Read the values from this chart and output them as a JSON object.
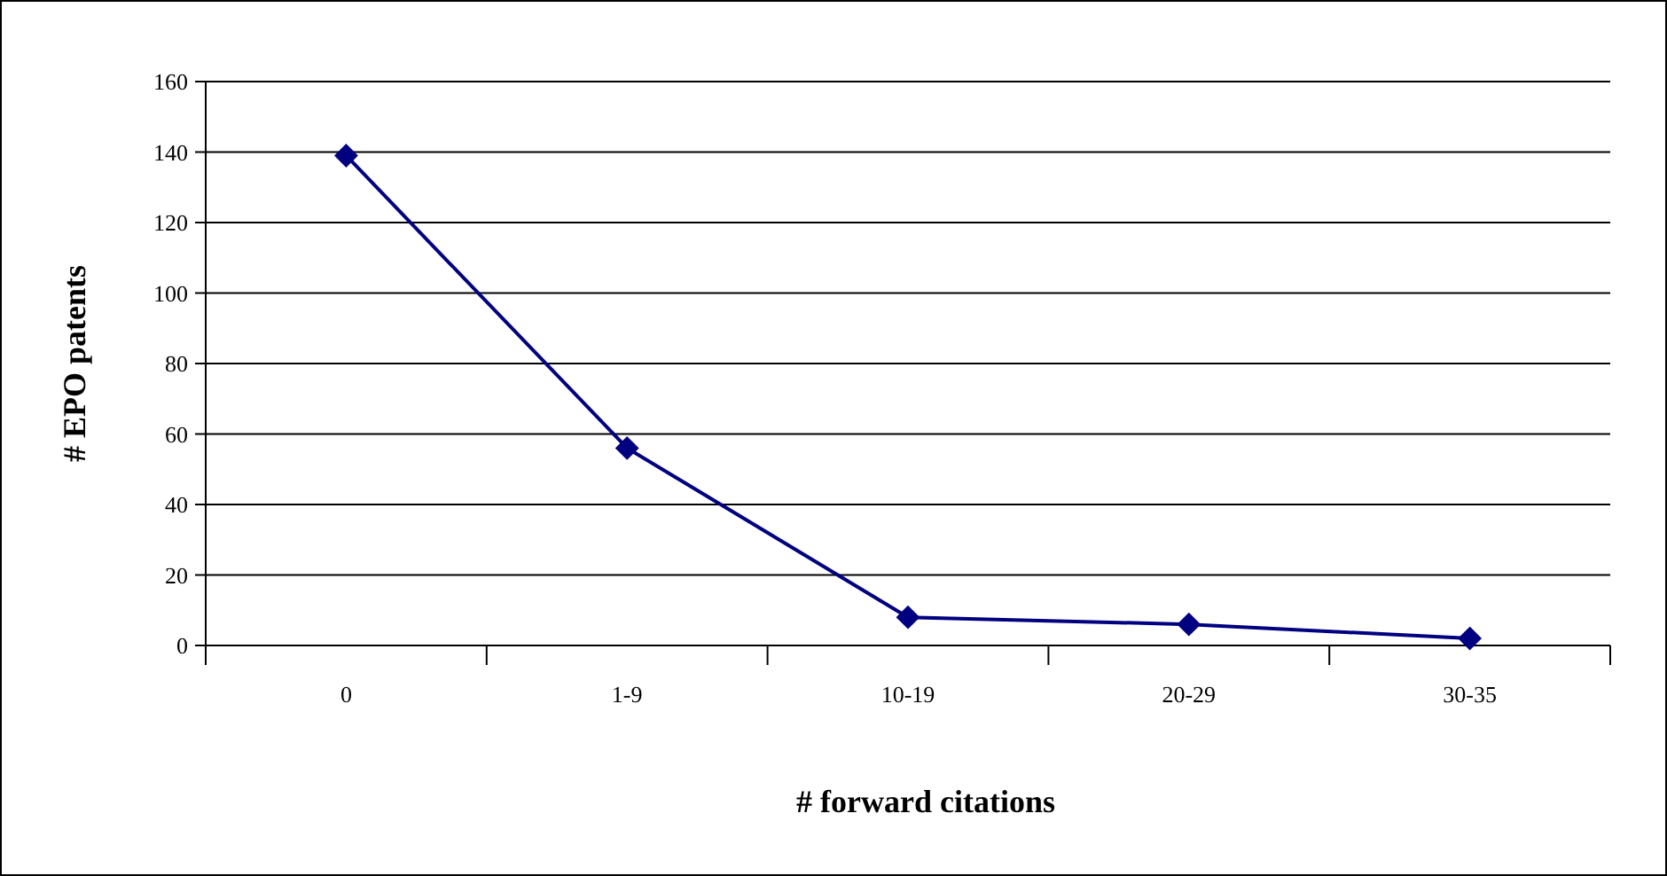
{
  "chart_data": {
    "type": "line",
    "xlabel": "# forward citations",
    "ylabel": "# EPO patents",
    "categories": [
      "0",
      "1-9",
      "10-19",
      "20-29",
      "30-35"
    ],
    "series": [
      {
        "color": "#000080",
        "values": [
          139,
          56,
          8,
          6,
          2
        ]
      }
    ],
    "ylim": [
      0,
      160
    ],
    "yticks": [
      0,
      20,
      40,
      60,
      80,
      100,
      120,
      140,
      160
    ],
    "grid": "y",
    "marker": "diamond",
    "line_style": "solid"
  }
}
